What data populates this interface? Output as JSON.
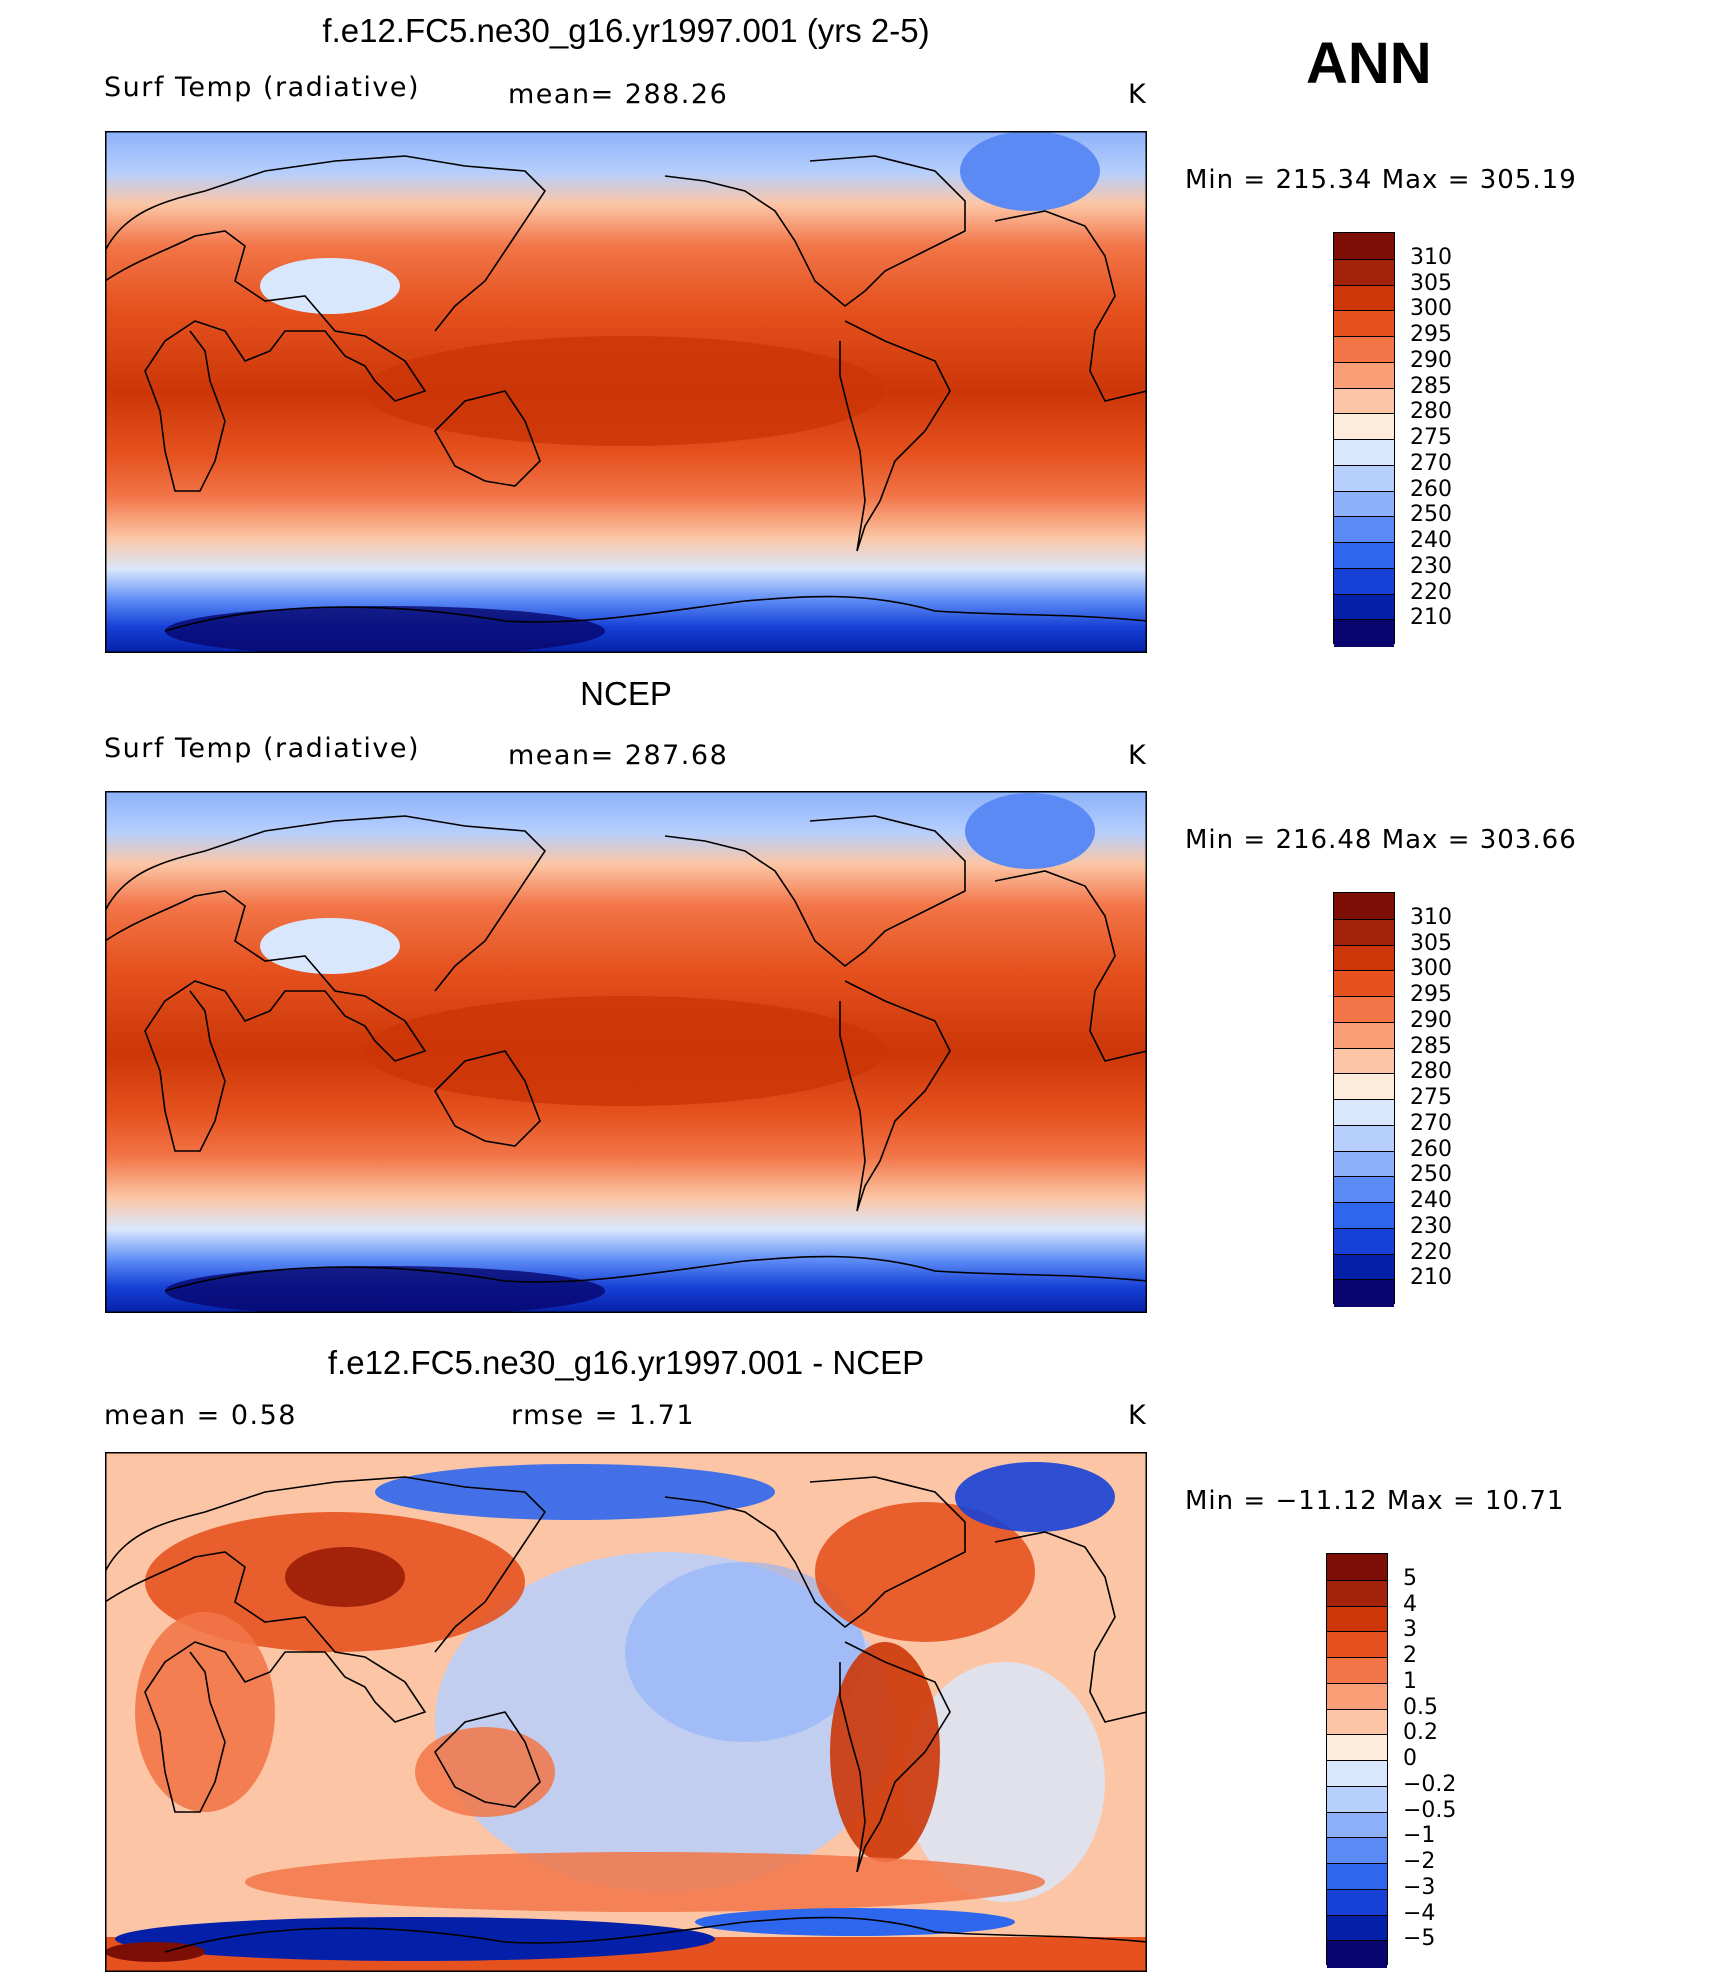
{
  "season": "ANN",
  "palette": {
    "abs": [
      "#08066e",
      "#0520a8",
      "#1741d6",
      "#2f66ee",
      "#5b8af5",
      "#8cb1fa",
      "#b6cffc",
      "#d9e7fd",
      "#fdebdc",
      "#fcc6a6",
      "#f99f78",
      "#f27548",
      "#e5521f",
      "#cc3608",
      "#a3220a",
      "#7c0e06"
    ],
    "diff": [
      "#08066e",
      "#0520a8",
      "#1741d6",
      "#2f66ee",
      "#5b8af5",
      "#8cb1fa",
      "#b6cffc",
      "#d9e7fd",
      "#fdebdc",
      "#fcc6a6",
      "#f99f78",
      "#f27548",
      "#e5521f",
      "#cc3608",
      "#a3220a",
      "#7c0e06"
    ]
  },
  "panels": [
    {
      "title": "f.e12.FC5.ne30_g16.yr1997.001 (yrs 2-5)",
      "left": "Surf Temp (radiative)",
      "stat1": "mean= 288.26",
      "stat2": "",
      "units": "K",
      "minmax": "Min = 215.34 Max = 305.19",
      "colorbar": [
        "310",
        "305",
        "300",
        "295",
        "290",
        "285",
        "280",
        "275",
        "270",
        "260",
        "250",
        "240",
        "230",
        "220",
        "210"
      ]
    },
    {
      "title": "NCEP",
      "left": "Surf Temp (radiative)",
      "stat1": "mean= 287.68",
      "stat2": "",
      "units": "K",
      "minmax": "Min = 216.48 Max = 303.66",
      "colorbar": [
        "310",
        "305",
        "300",
        "295",
        "290",
        "285",
        "280",
        "275",
        "270",
        "260",
        "250",
        "240",
        "230",
        "220",
        "210"
      ]
    },
    {
      "title": "f.e12.FC5.ne30_g16.yr1997.001 - NCEP",
      "left": "mean =    0.58",
      "stat1": "",
      "stat2": "rmse =    1.71",
      "units": "K",
      "minmax": "Min = −11.12 Max =  10.71",
      "colorbar": [
        "5",
        "4",
        "3",
        "2",
        "1",
        "0.5",
        "0.2",
        "0",
        "−0.2",
        "−0.5",
        "−1",
        "−2",
        "−3",
        "−4",
        "−5"
      ]
    }
  ]
}
